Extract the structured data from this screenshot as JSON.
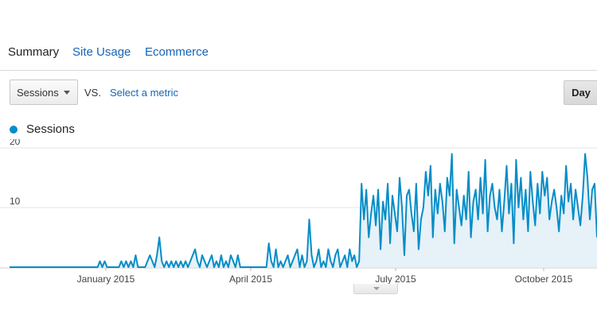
{
  "tabs": [
    {
      "label": "Summary",
      "active": true
    },
    {
      "label": "Site Usage",
      "active": false
    },
    {
      "label": "Ecommerce",
      "active": false
    }
  ],
  "controls": {
    "metric_select": "Sessions",
    "vs_label": "VS.",
    "second_metric": "Select a metric",
    "day_button": "Day"
  },
  "legend": {
    "label": "Sessions",
    "color": "#058dc7"
  },
  "chart_data": {
    "type": "area",
    "series": [
      {
        "name": "Sessions",
        "color": "#058dc7"
      }
    ],
    "y_ticks": [
      10,
      20
    ],
    "ylim": [
      0,
      20
    ],
    "x_ticks": [
      "January 2015",
      "April 2015",
      "July 2015",
      "October 2015"
    ],
    "grid": true,
    "values": [
      0,
      0,
      0,
      0,
      0,
      0,
      0,
      0,
      0,
      0,
      0,
      0,
      0,
      0,
      0,
      0,
      0,
      0,
      0,
      0,
      0,
      0,
      0,
      0,
      0,
      0,
      0,
      0,
      0,
      0,
      0,
      0,
      0,
      0,
      0,
      0,
      0,
      0,
      1,
      0,
      1,
      0,
      0,
      0,
      0,
      0,
      0,
      1,
      0,
      1,
      0,
      1,
      0,
      2,
      0,
      0,
      0,
      0,
      1,
      2,
      1,
      0,
      2,
      5,
      1,
      0,
      1,
      0,
      1,
      0,
      1,
      0,
      1,
      0,
      1,
      0,
      1,
      2,
      3,
      1,
      0,
      2,
      1,
      0,
      1,
      2,
      0,
      1,
      0,
      2,
      0,
      1,
      0,
      2,
      1,
      0,
      2,
      0,
      0,
      0,
      0,
      0,
      0,
      0,
      0,
      0,
      0,
      0,
      0,
      4,
      1,
      0,
      3,
      0,
      1,
      0,
      1,
      2,
      0,
      1,
      2,
      3,
      0,
      2,
      0,
      1,
      8,
      2,
      0,
      1,
      3,
      0,
      1,
      0,
      3,
      1,
      0,
      2,
      3,
      0,
      1,
      2,
      0,
      3,
      1,
      2,
      0,
      1,
      14,
      8,
      13,
      5,
      9,
      12,
      7,
      13,
      3,
      11,
      8,
      14,
      4,
      12,
      9,
      6,
      15,
      10,
      2,
      12,
      13,
      9,
      6,
      14,
      3,
      8,
      10,
      16,
      12,
      17,
      5,
      13,
      9,
      14,
      11,
      6,
      15,
      12,
      19,
      4,
      13,
      10,
      7,
      12,
      8,
      16,
      5,
      11,
      13,
      8,
      15,
      9,
      18,
      6,
      12,
      14,
      10,
      8,
      13,
      6,
      11,
      17,
      9,
      14,
      4,
      18,
      10,
      15,
      8,
      13,
      6,
      16,
      11,
      7,
      14,
      9,
      16,
      12,
      15,
      8,
      11,
      13,
      10,
      6,
      12,
      9,
      17,
      11,
      14,
      8,
      13,
      10,
      7,
      12,
      19,
      15,
      8,
      13,
      14,
      5
    ]
  },
  "colors": {
    "accent": "#058dc7",
    "link": "#1565b5"
  }
}
